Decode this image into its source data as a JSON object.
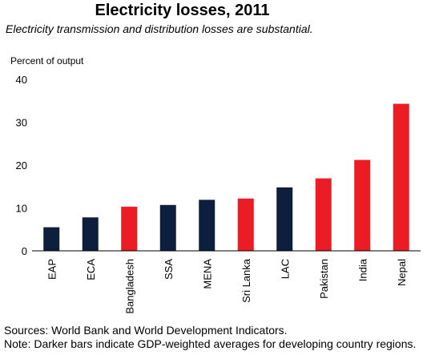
{
  "chart_data": {
    "type": "bar",
    "title": "Electricity losses, 2011",
    "subtitle": "Electricity transmission and distribution losses are substantial.",
    "ylabel": "Percent of output",
    "xlabel": "",
    "ylim": [
      0,
      40
    ],
    "yticks": [
      0,
      10,
      20,
      30,
      40
    ],
    "categories": [
      "EAP",
      "ECA",
      "Bangladesh",
      "SSA",
      "MENA",
      "Sri Lanka",
      "LAC",
      "Pakistan",
      "India",
      "Nepal"
    ],
    "values": [
      5.5,
      7.8,
      10.3,
      10.7,
      11.9,
      12.2,
      14.8,
      16.9,
      21.2,
      34.3
    ],
    "bar_groups": [
      "region",
      "region",
      "country",
      "region",
      "region",
      "country",
      "region",
      "country",
      "country",
      "country"
    ],
    "colors": {
      "region": "#0d1f3c",
      "country": "#ec1c24"
    },
    "grid": false,
    "legend": "none"
  },
  "footer": {
    "sources": "Sources: World Bank and World Development Indicators.",
    "note": "Note: Darker bars indicate GDP-weighted averages for developing country regions."
  }
}
